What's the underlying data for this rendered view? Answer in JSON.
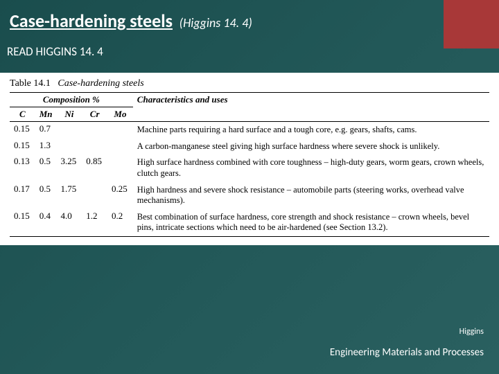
{
  "title": {
    "main": "Case-hardening steels",
    "ref": "(Higgins 14. 4)"
  },
  "subtitle": "READ HIGGINS 14. 4",
  "table": {
    "caption_label": "Table 14.1",
    "caption_text": "Case-hardening steels",
    "comp_header": "Composition %",
    "char_header": "Characteristics and uses",
    "elements": [
      "C",
      "Mn",
      "Ni",
      "Cr",
      "Mo"
    ],
    "rows": [
      {
        "comp": [
          "0.15",
          "0.7",
          "",
          "",
          ""
        ],
        "char": "Machine parts requiring a hard surface and a tough core, e.g. gears, shafts, cams."
      },
      {
        "comp": [
          "0.15",
          "1.3",
          "",
          "",
          ""
        ],
        "char": "A carbon-manganese steel giving high surface hardness where severe shock is unlikely."
      },
      {
        "comp": [
          "0.13",
          "0.5",
          "3.25",
          "0.85",
          ""
        ],
        "char": "High surface hardness combined with core toughness – high-duty gears, worm gears, crown wheels, clutch gears."
      },
      {
        "comp": [
          "0.17",
          "0.5",
          "1.75",
          "",
          "0.25"
        ],
        "char": "High hardness and severe shock resistance – automobile parts (steering works, overhead valve mechanisms)."
      },
      {
        "comp": [
          "0.15",
          "0.4",
          "4.0",
          "1.2",
          "0.2"
        ],
        "char": "Best combination of surface hardness, core strength and shock resistance – crown wheels, bevel pins, intricate sections which need to be air-hardened (see Section 13.2)."
      }
    ]
  },
  "footer": {
    "source": "Higgins",
    "course": "Engineering Materials and Processes"
  },
  "colors": {
    "bg_start": "#1a4d4d",
    "bg_end": "#2a6060",
    "accent": "#a83838",
    "text_light": "#ffffff",
    "table_bg": "#ffffff",
    "rule": "#000000"
  }
}
